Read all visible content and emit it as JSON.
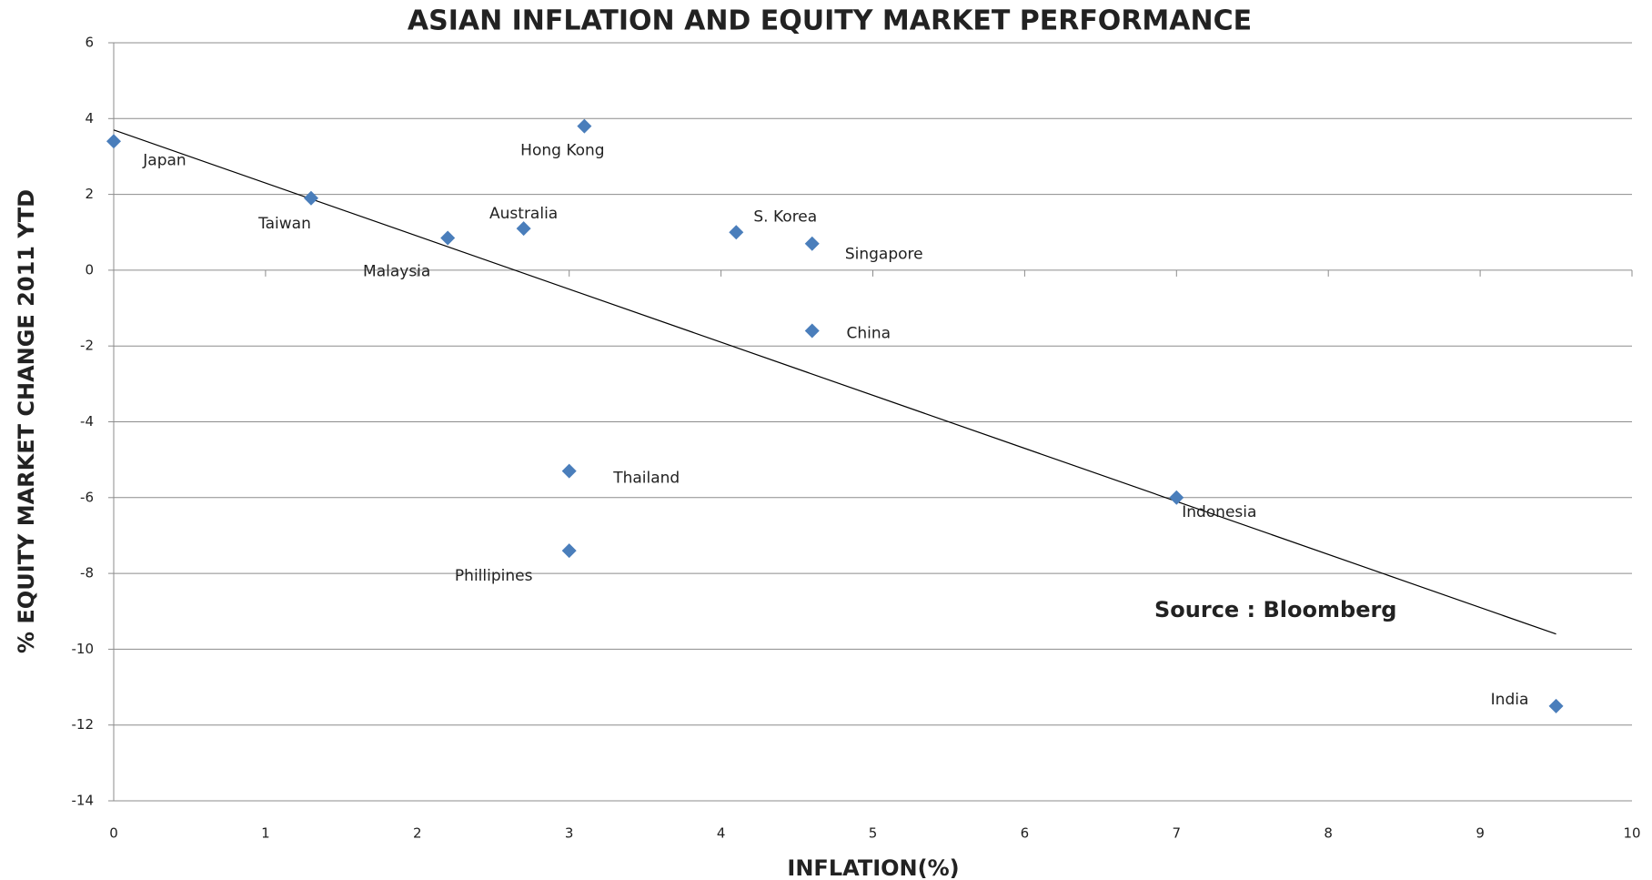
{
  "chart_data": {
    "type": "scatter",
    "title": "ASIAN  INFLATION AND EQUITY MARKET PERFORMANCE",
    "x_label": "INFLATION(%)",
    "y_label": "% EQUITY MARKET CHANGE  2011 YTD",
    "annotation": "Source : Bloomberg",
    "categories": [
      "Japan",
      "Hong Kong",
      "Taiwan",
      "Malaysia",
      "Australia",
      "S. Korea",
      "Singapore",
      "China",
      "Thailand",
      "Phillipines",
      "Indonesia",
      "India"
    ],
    "x": [
      0,
      3.1,
      1.3,
      2.2,
      2.7,
      4.1,
      4.6,
      4.6,
      3.0,
      3.0,
      7.0,
      9.5
    ],
    "values": [
      3.4,
      3.8,
      1.9,
      0.85,
      1.1,
      1.0,
      0.7,
      -1.6,
      -5.3,
      -7.4,
      -6.0,
      -11.5
    ],
    "color": "#4a7ebb",
    "trendline": {
      "x": [
        0,
        9.5
      ],
      "y": [
        3.7,
        -9.6
      ]
    },
    "xlim": [
      0,
      10
    ],
    "xticks": [
      0,
      1,
      2,
      3,
      4,
      5,
      6,
      7,
      8,
      9,
      10
    ],
    "ylim": [
      -14,
      6
    ],
    "yticks": [
      -14,
      -12,
      -10,
      -8,
      -6,
      -4,
      -2,
      0,
      2,
      4,
      6
    ],
    "grid": true
  }
}
